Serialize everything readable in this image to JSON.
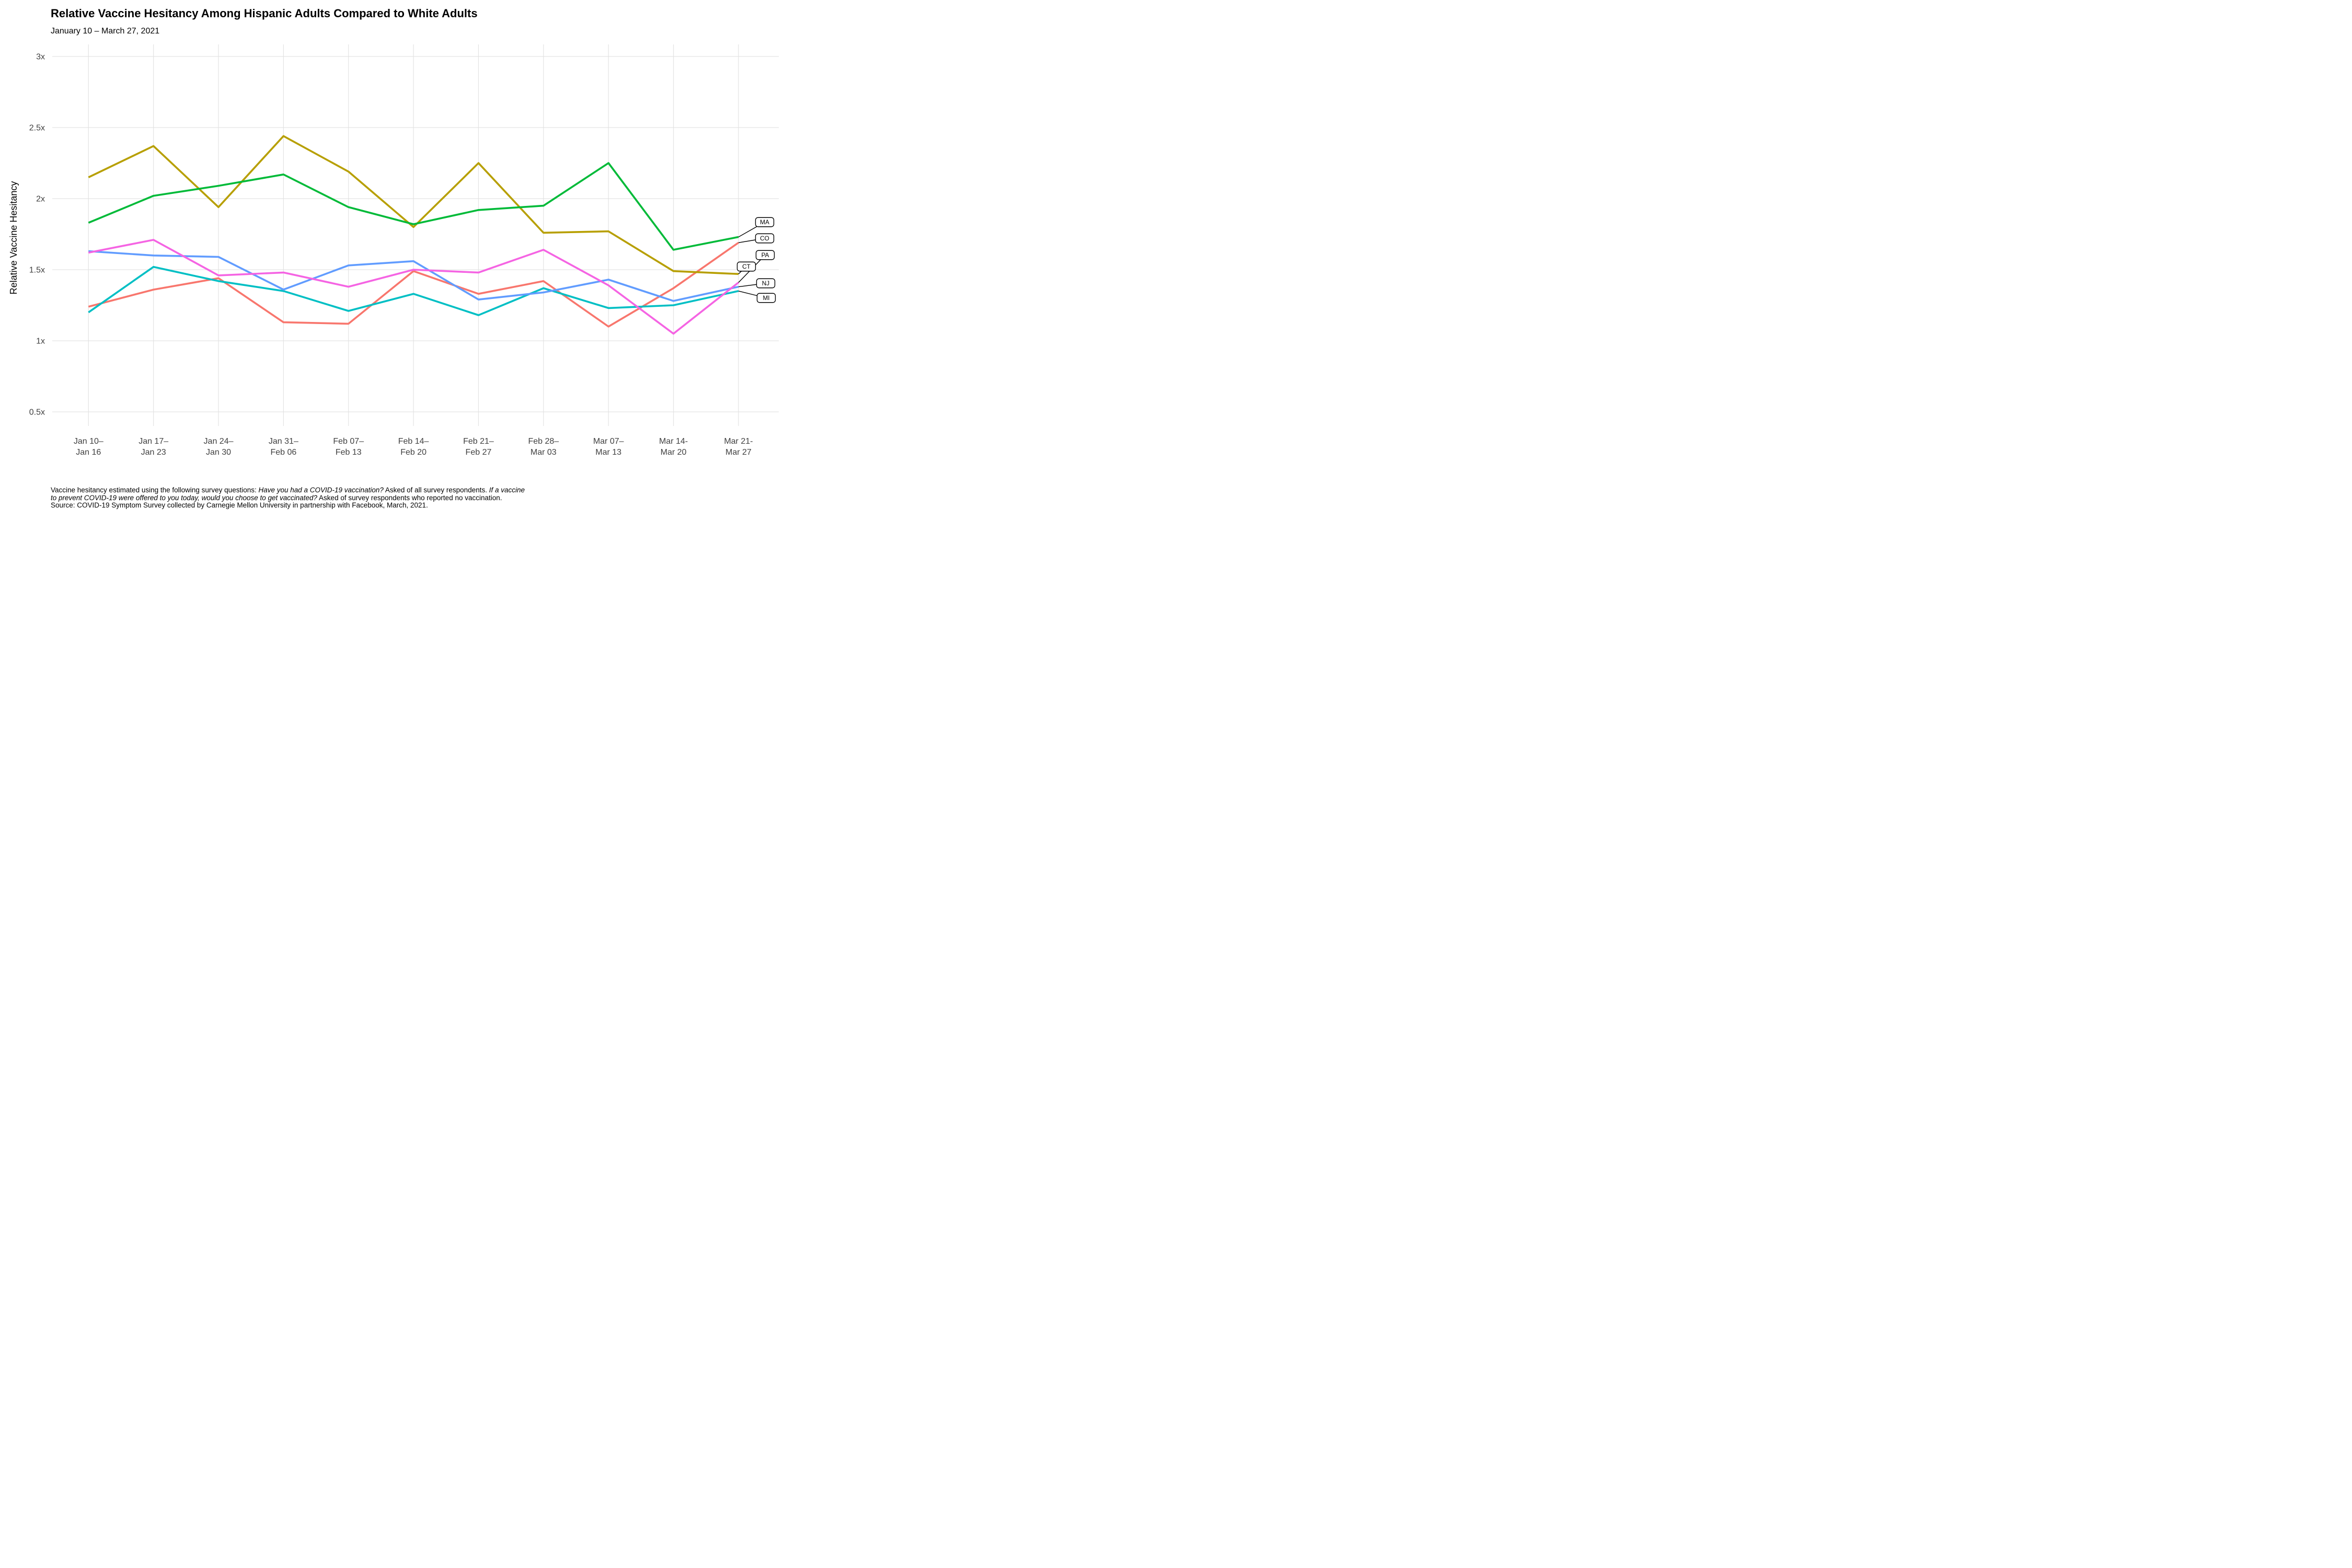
{
  "header": {
    "title": "Relative Vaccine Hesitancy Among Hispanic Adults Compared to White Adults",
    "subtitle": "January 10 – March 27, 2021"
  },
  "y_axis": {
    "title": "Relative Vaccine Hesitancy"
  },
  "footnote": {
    "l1a": "Vaccine hesitancy estimated using the following survey questions: ",
    "l1b": "Have you had a COVID-19 vaccination?",
    "l1c": " Asked of all survey respondents. ",
    "l1d": "If a vaccine",
    "l2a": "to prevent COVID-19 were offered to you today, would you choose to get vaccinated?",
    "l2b": " Asked of survey respondents who reported no vaccination.",
    "l3": "Source: COVID-19 Symptom Survey collected by Carnegie Mellon University in partnership with Facebook, March, 2021."
  },
  "chart_data": {
    "type": "line",
    "title": "Relative Vaccine Hesitancy Among Hispanic Adults Compared to White Adults",
    "subtitle": "January 10 – March 27, 2021",
    "xlabel": "",
    "ylabel": "Relative Vaccine Hesitancy",
    "ylim": [
      0.41,
      3.08
    ],
    "grid": true,
    "legend_position": "right-end-labels",
    "y_ticks": {
      "values": [
        3,
        2.5,
        2,
        1.5,
        1,
        0.5
      ],
      "labels": [
        "3x",
        "2.5x",
        "2x",
        "1.5x",
        "1x",
        "0.5x"
      ]
    },
    "categories": [
      {
        "l1": "Jan 10–",
        "l2": "Jan 16"
      },
      {
        "l1": "Jan 17–",
        "l2": "Jan 23"
      },
      {
        "l1": "Jan 24–",
        "l2": "Jan 30"
      },
      {
        "l1": "Jan 31–",
        "l2": "Feb 06"
      },
      {
        "l1": "Feb 07–",
        "l2": "Feb 13"
      },
      {
        "l1": "Feb 14–",
        "l2": "Feb 20"
      },
      {
        "l1": "Feb 21–",
        "l2": "Feb 27"
      },
      {
        "l1": "Feb 28–",
        "l2": "Mar 03"
      },
      {
        "l1": "Mar 07–",
        "l2": "Mar 13"
      },
      {
        "l1": "Mar 14-",
        "l2": "Mar 20"
      },
      {
        "l1": "Mar 21-",
        "l2": "Mar 27"
      }
    ],
    "series": [
      {
        "name": "CO",
        "color": "#F8766D",
        "values": [
          1.24,
          1.36,
          1.44,
          1.13,
          1.12,
          1.49,
          1.33,
          1.42,
          1.1,
          1.37,
          1.69
        ]
      },
      {
        "name": "CT",
        "color": "#B79F00",
        "values": [
          2.15,
          2.37,
          1.94,
          2.44,
          2.19,
          1.8,
          2.25,
          1.76,
          1.77,
          1.49,
          1.47
        ]
      },
      {
        "name": "MA",
        "color": "#00BA38",
        "values": [
          1.83,
          2.02,
          2.09,
          2.17,
          1.94,
          1.82,
          1.92,
          1.95,
          2.25,
          1.64,
          1.73
        ]
      },
      {
        "name": "MI",
        "color": "#00BFC4",
        "values": [
          1.2,
          1.52,
          1.42,
          1.35,
          1.21,
          1.33,
          1.18,
          1.37,
          1.23,
          1.25,
          1.35
        ]
      },
      {
        "name": "NJ",
        "color": "#619CFF",
        "values": [
          1.63,
          1.6,
          1.59,
          1.36,
          1.53,
          1.56,
          1.29,
          1.34,
          1.43,
          1.28,
          1.38
        ]
      },
      {
        "name": "PA",
        "color": "#F564E3",
        "values": [
          1.62,
          1.71,
          1.46,
          1.48,
          1.38,
          1.5,
          1.48,
          1.64,
          1.39,
          1.05,
          1.41
        ]
      }
    ],
    "end_labels": [
      {
        "name": "MA",
        "bx": 1463,
        "by": 425
      },
      {
        "name": "CO",
        "bx": 1463,
        "by": 456
      },
      {
        "name": "PA",
        "bx": 1464,
        "by": 488
      },
      {
        "name": "CT",
        "bx": 1428,
        "by": 510
      },
      {
        "name": "NJ",
        "bx": 1465,
        "by": 542
      },
      {
        "name": "MI",
        "bx": 1466,
        "by": 570
      }
    ]
  }
}
